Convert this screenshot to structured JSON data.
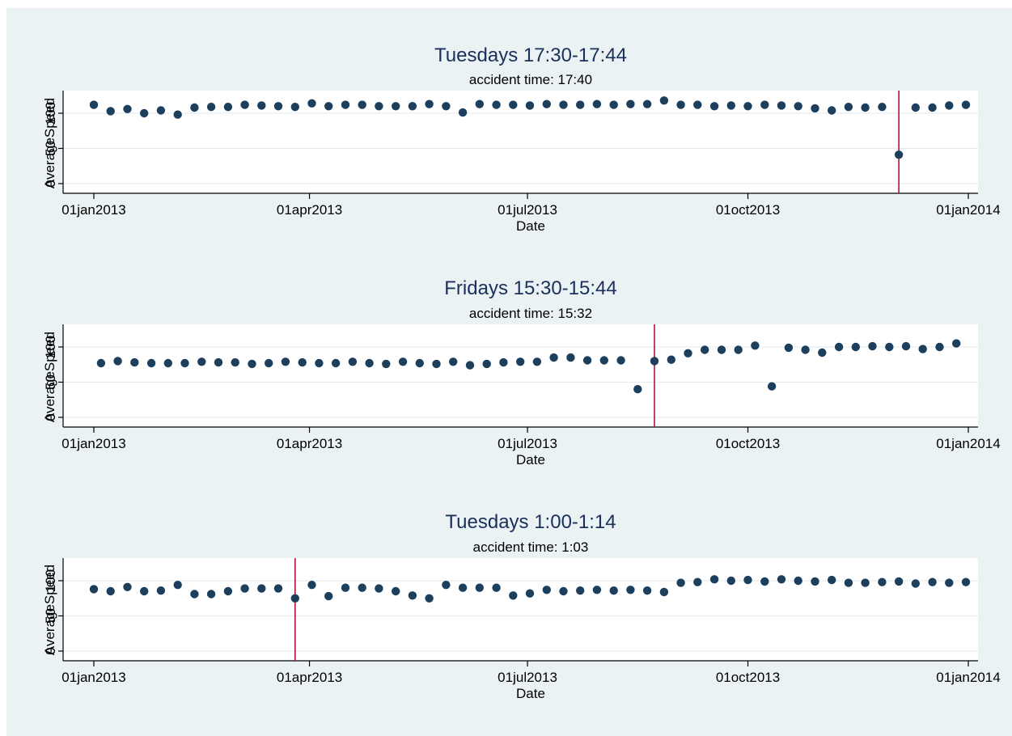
{
  "colors": {
    "background": "#eaf2f3",
    "plot_background": "#ffffff",
    "marker": "#1c3f5e",
    "accident_line": "#b0123f",
    "grid": "#e6edef",
    "title": "#1b2f5b"
  },
  "chart_data": [
    {
      "type": "scatter",
      "title": "Tuesdays 17:30-17:44",
      "subtitle": "accident time: 17:40",
      "xlabel": "Date",
      "ylabel": "AverageSpeed",
      "xlim": [
        "2013-01-01",
        "2014-01-01"
      ],
      "ylim": [
        0,
        120
      ],
      "yticks": [
        0,
        50,
        100
      ],
      "xticks": [
        "01jan2013",
        "01apr2013",
        "01jul2013",
        "01oct2013",
        "01jan2014"
      ],
      "grid": true,
      "accident_date": "2013-12-03",
      "x": [
        "2013-01-01",
        "2013-01-08",
        "2013-01-15",
        "2013-01-22",
        "2013-01-29",
        "2013-02-05",
        "2013-02-12",
        "2013-02-19",
        "2013-02-26",
        "2013-03-05",
        "2013-03-12",
        "2013-03-19",
        "2013-03-26",
        "2013-04-02",
        "2013-04-09",
        "2013-04-16",
        "2013-04-23",
        "2013-04-30",
        "2013-05-07",
        "2013-05-14",
        "2013-05-21",
        "2013-05-28",
        "2013-06-04",
        "2013-06-11",
        "2013-06-18",
        "2013-06-25",
        "2013-07-02",
        "2013-07-09",
        "2013-07-16",
        "2013-07-23",
        "2013-07-30",
        "2013-08-06",
        "2013-08-13",
        "2013-08-20",
        "2013-08-27",
        "2013-09-03",
        "2013-09-10",
        "2013-09-17",
        "2013-09-24",
        "2013-10-01",
        "2013-10-08",
        "2013-10-15",
        "2013-10-22",
        "2013-10-29",
        "2013-11-05",
        "2013-11-12",
        "2013-11-19",
        "2013-11-26",
        "2013-12-03",
        "2013-12-10",
        "2013-12-17",
        "2013-12-24",
        "2013-12-31"
      ],
      "y": [
        112,
        103,
        106,
        100,
        104,
        98,
        108,
        109,
        109,
        112,
        111,
        110,
        109,
        114,
        110,
        112,
        112,
        110,
        110,
        110,
        113,
        110,
        101,
        113,
        112,
        112,
        111,
        113,
        112,
        112,
        113,
        112,
        113,
        113,
        118,
        112,
        112,
        110,
        111,
        110,
        112,
        111,
        110,
        107,
        104,
        109,
        108,
        109,
        41,
        108,
        108,
        111,
        112
      ]
    },
    {
      "type": "scatter",
      "title": "Fridays 15:30-15:44",
      "subtitle": "accident time: 15:32",
      "xlabel": "Date",
      "ylabel": "AverageSpeed",
      "xlim": [
        "2013-01-01",
        "2014-01-01"
      ],
      "ylim": [
        0,
        120
      ],
      "yticks": [
        0,
        50,
        100
      ],
      "xticks": [
        "01jan2013",
        "01apr2013",
        "01jul2013",
        "01oct2013",
        "01jan2014"
      ],
      "grid": true,
      "accident_date": "2013-08-23",
      "x": [
        "2013-01-04",
        "2013-01-11",
        "2013-01-18",
        "2013-01-25",
        "2013-02-01",
        "2013-02-08",
        "2013-02-15",
        "2013-02-22",
        "2013-03-01",
        "2013-03-08",
        "2013-03-15",
        "2013-03-22",
        "2013-03-29",
        "2013-04-05",
        "2013-04-12",
        "2013-04-19",
        "2013-04-26",
        "2013-05-03",
        "2013-05-10",
        "2013-05-17",
        "2013-05-24",
        "2013-05-31",
        "2013-06-07",
        "2013-06-14",
        "2013-06-21",
        "2013-06-28",
        "2013-07-05",
        "2013-07-12",
        "2013-07-19",
        "2013-07-26",
        "2013-08-02",
        "2013-08-09",
        "2013-08-16",
        "2013-08-23",
        "2013-08-30",
        "2013-09-06",
        "2013-09-13",
        "2013-09-20",
        "2013-09-27",
        "2013-10-04",
        "2013-10-11",
        "2013-10-18",
        "2013-10-25",
        "2013-11-01",
        "2013-11-08",
        "2013-11-15",
        "2013-11-22",
        "2013-11-29",
        "2013-12-06",
        "2013-12-13",
        "2013-12-20",
        "2013-12-27"
      ],
      "y": [
        77,
        80,
        78,
        77,
        77,
        77,
        79,
        78,
        78,
        76,
        77,
        79,
        78,
        77,
        77,
        79,
        77,
        76,
        79,
        77,
        76,
        79,
        74,
        76,
        78,
        79,
        79,
        85,
        85,
        81,
        81,
        81,
        40,
        80,
        82,
        91,
        96,
        96,
        96,
        102,
        44,
        99,
        96,
        92,
        100,
        100,
        101,
        100,
        101,
        97,
        100,
        105
      ]
    },
    {
      "type": "scatter",
      "title": "Tuesdays 1:00-1:14",
      "subtitle": "accident time: 1:03",
      "xlabel": "Date",
      "ylabel": "AverageSpeed",
      "xlim": [
        "2013-01-01",
        "2014-01-01"
      ],
      "ylim": [
        0,
        120
      ],
      "yticks": [
        0,
        50,
        100
      ],
      "xticks": [
        "01jan2013",
        "01apr2013",
        "01jul2013",
        "01oct2013",
        "01jan2014"
      ],
      "grid": true,
      "accident_date": "2013-03-26",
      "x": [
        "2013-01-01",
        "2013-01-08",
        "2013-01-15",
        "2013-01-22",
        "2013-01-29",
        "2013-02-05",
        "2013-02-12",
        "2013-02-19",
        "2013-02-26",
        "2013-03-05",
        "2013-03-12",
        "2013-03-19",
        "2013-03-26",
        "2013-04-02",
        "2013-04-09",
        "2013-04-16",
        "2013-04-23",
        "2013-04-30",
        "2013-05-07",
        "2013-05-14",
        "2013-05-21",
        "2013-05-28",
        "2013-06-04",
        "2013-06-11",
        "2013-06-18",
        "2013-06-25",
        "2013-07-02",
        "2013-07-09",
        "2013-07-16",
        "2013-07-23",
        "2013-07-30",
        "2013-08-06",
        "2013-08-13",
        "2013-08-20",
        "2013-08-27",
        "2013-09-03",
        "2013-09-10",
        "2013-09-17",
        "2013-09-24",
        "2013-10-01",
        "2013-10-08",
        "2013-10-15",
        "2013-10-22",
        "2013-10-29",
        "2013-11-05",
        "2013-11-12",
        "2013-11-19",
        "2013-11-26",
        "2013-12-03",
        "2013-12-10",
        "2013-12-17",
        "2013-12-24",
        "2013-12-31"
      ],
      "y": [
        88,
        85,
        91,
        85,
        86,
        94,
        81,
        81,
        85,
        89,
        89,
        89,
        75,
        94,
        78,
        90,
        90,
        89,
        85,
        79,
        75,
        94,
        90,
        90,
        90,
        79,
        82,
        87,
        85,
        86,
        87,
        86,
        87,
        86,
        84,
        97,
        98,
        102,
        100,
        101,
        99,
        102,
        100,
        99,
        101,
        97,
        97,
        98,
        99,
        96,
        98,
        97,
        98
      ]
    }
  ]
}
